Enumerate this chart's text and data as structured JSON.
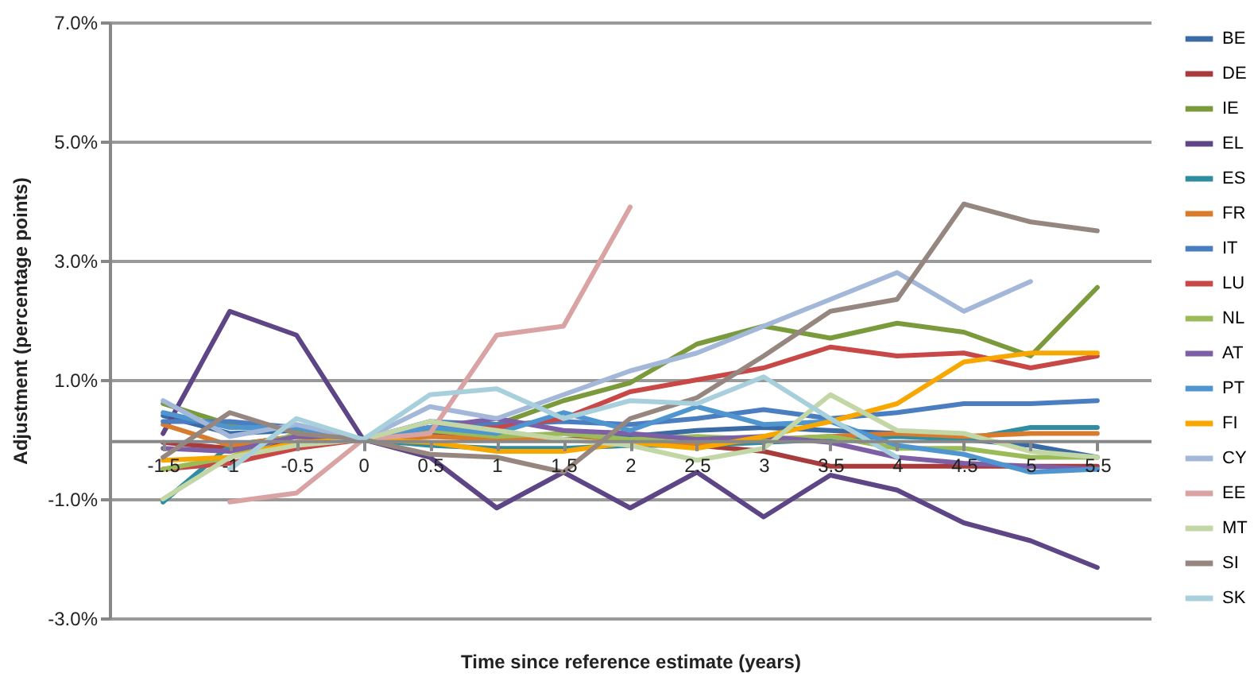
{
  "chart_data": {
    "type": "line",
    "xlabel": "Time since reference estimate (years)",
    "ylabel": "Adjustment (percentage points)",
    "categories": [
      "-1.5",
      "-1",
      "-0.5",
      "0",
      "0.5",
      "1",
      "1.5",
      "2",
      "2.5",
      "3",
      "3.5",
      "4",
      "4.5",
      "5",
      "5.5"
    ],
    "ylim": [
      -3,
      7
    ],
    "yticks": [
      {
        "value": -3,
        "label": "-3.0%"
      },
      {
        "value": -1,
        "label": "-1.0%"
      },
      {
        "value": 1,
        "label": "1.0%"
      },
      {
        "value": 3,
        "label": "3.0%"
      },
      {
        "value": 5,
        "label": "5.0%"
      },
      {
        "value": 7,
        "label": "7.0%"
      }
    ],
    "grid": "y",
    "legend": "right",
    "marker": "none",
    "line_style": "solid",
    "series": [
      {
        "name": "BE",
        "color": "#3a6ba5",
        "values": [
          0.4,
          0.1,
          0.15,
          0,
          0.1,
          0.05,
          0.0,
          0.05,
          0.15,
          0.2,
          0.15,
          0.1,
          0.0,
          -0.1,
          -0.3
        ]
      },
      {
        "name": "DE",
        "color": "#a83b3b",
        "values": [
          -0.05,
          -0.15,
          -0.05,
          0,
          0.05,
          0.05,
          0.0,
          -0.05,
          -0.1,
          -0.2,
          -0.45,
          -0.45,
          -0.45,
          -0.45,
          -0.45
        ]
      },
      {
        "name": "IE",
        "color": "#7a9a3c",
        "values": [
          0.6,
          0.25,
          0.15,
          0,
          0.2,
          0.25,
          0.65,
          0.95,
          1.6,
          1.9,
          1.7,
          1.95,
          1.8,
          1.4,
          2.55
        ]
      },
      {
        "name": "EL",
        "color": "#5e4585",
        "values": [
          0.1,
          2.15,
          1.75,
          0,
          -0.3,
          -1.15,
          -0.55,
          -1.15,
          -0.55,
          -1.3,
          -0.6,
          -0.85,
          -1.4,
          -1.7,
          -2.15
        ]
      },
      {
        "name": "ES",
        "color": "#2e8da0",
        "values": [
          -1.05,
          -0.1,
          0.05,
          0,
          -0.1,
          -0.15,
          -0.15,
          -0.1,
          -0.1,
          -0.05,
          0.0,
          0.05,
          0.0,
          0.2,
          0.2
        ]
      },
      {
        "name": "FR",
        "color": "#d97b2c",
        "values": [
          0.25,
          -0.1,
          0.05,
          0,
          0.05,
          0.0,
          0.0,
          -0.05,
          -0.1,
          0.0,
          0.05,
          0.1,
          0.05,
          0.1,
          0.1
        ]
      },
      {
        "name": "IT",
        "color": "#4a7ec0",
        "values": [
          0.3,
          0.3,
          0.2,
          0,
          0.3,
          0.25,
          0.3,
          0.25,
          0.35,
          0.5,
          0.35,
          0.45,
          0.6,
          0.6,
          0.65
        ]
      },
      {
        "name": "LU",
        "color": "#c84848",
        "values": [
          -0.5,
          -0.4,
          -0.15,
          0,
          0.15,
          0.2,
          0.35,
          0.8,
          1.0,
          1.2,
          1.55,
          1.4,
          1.45,
          1.2,
          1.4
        ]
      },
      {
        "name": "NL",
        "color": "#9bbb59",
        "values": [
          -0.5,
          -0.3,
          0.1,
          0,
          0.15,
          0.05,
          0.1,
          0.0,
          0.05,
          0.0,
          0.05,
          -0.15,
          -0.15,
          -0.3,
          -0.3
        ]
      },
      {
        "name": "AT",
        "color": "#7d5fa5",
        "values": [
          -0.15,
          -0.2,
          0.05,
          0,
          0.2,
          0.35,
          0.15,
          0.1,
          0.0,
          0.05,
          -0.05,
          -0.3,
          -0.4,
          -0.45,
          -0.5
        ]
      },
      {
        "name": "PT",
        "color": "#4f95d0",
        "values": [
          0.45,
          0.2,
          0.2,
          0,
          0.2,
          0.1,
          0.45,
          0.15,
          0.55,
          0.25,
          0.3,
          -0.1,
          -0.25,
          -0.55,
          -0.5
        ]
      },
      {
        "name": "FI",
        "color": "#f7a700",
        "values": [
          -0.35,
          -0.3,
          -0.05,
          0,
          -0.05,
          -0.2,
          -0.2,
          -0.05,
          -0.15,
          0.05,
          0.3,
          0.6,
          1.3,
          1.45,
          1.45
        ]
      },
      {
        "name": "CY",
        "color": "#a3b7d8",
        "values": [
          0.65,
          0.05,
          0.25,
          0,
          0.55,
          0.35,
          0.75,
          1.15,
          1.45,
          1.9,
          2.35,
          2.8,
          2.15,
          2.65,
          null
        ]
      },
      {
        "name": "EE",
        "color": "#d9a3a3",
        "values": [
          null,
          -1.05,
          -0.9,
          0,
          0.1,
          1.75,
          1.9,
          3.9,
          null,
          null,
          null,
          null,
          null,
          null,
          null
        ]
      },
      {
        "name": "MT",
        "color": "#c3d6a6",
        "values": [
          -1.0,
          -0.3,
          -0.1,
          0,
          0.3,
          0.15,
          0.0,
          -0.1,
          -0.35,
          -0.15,
          0.75,
          0.15,
          0.1,
          -0.2,
          -0.3
        ]
      },
      {
        "name": "SI",
        "color": "#968680",
        "values": [
          -0.3,
          0.45,
          0.1,
          0,
          -0.25,
          -0.3,
          -0.55,
          0.35,
          0.7,
          1.4,
          2.15,
          2.35,
          3.95,
          3.65,
          3.5
        ]
      },
      {
        "name": "SK",
        "color": "#a8cfdc",
        "values": [
          null,
          -0.5,
          0.35,
          0,
          0.75,
          0.85,
          0.35,
          0.65,
          0.6,
          1.05,
          0.35,
          -0.3,
          null,
          null,
          null
        ]
      }
    ]
  }
}
